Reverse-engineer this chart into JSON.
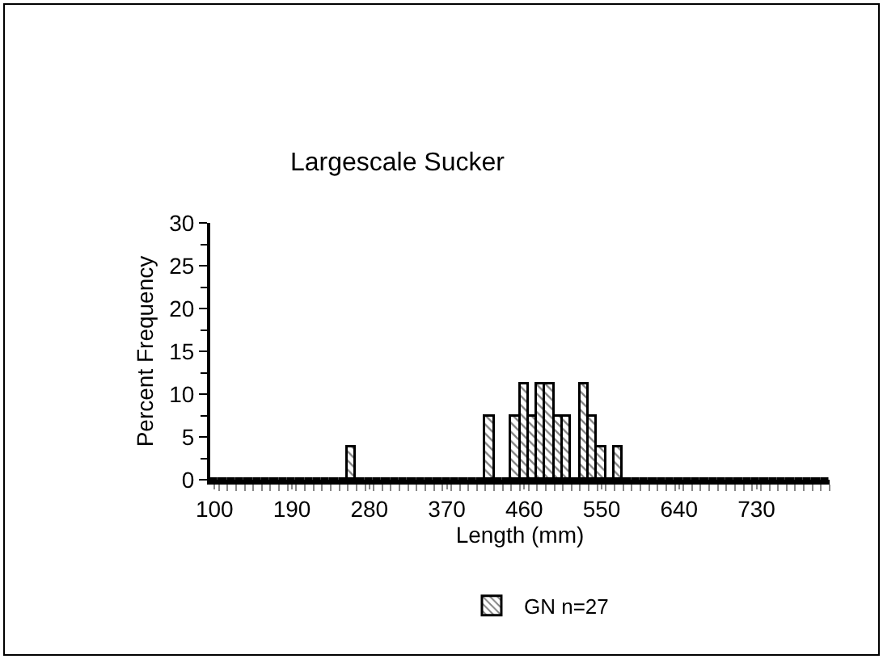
{
  "chart_data": {
    "type": "bar",
    "title": "Largescale Sucker",
    "xlabel": "Length (mm)",
    "ylabel": "Percent Frequency",
    "categories": [
      "100",
      null,
      null,
      null,
      null,
      null,
      null,
      null,
      null,
      "190",
      null,
      null,
      null,
      null,
      null,
      null,
      null,
      null,
      "280",
      null,
      null,
      null,
      null,
      null,
      null,
      null,
      null,
      "370",
      null,
      null,
      null,
      null,
      null,
      null,
      null,
      null,
      "460",
      null,
      null,
      null,
      null,
      null,
      null,
      null,
      null,
      "550",
      null,
      null,
      null,
      null,
      null,
      null,
      null,
      null,
      "640",
      null,
      null,
      null,
      null,
      null,
      null,
      null,
      null,
      "730",
      null,
      null,
      null,
      null,
      null,
      null,
      null,
      null
    ],
    "series": [
      {
        "name": "GN n=27",
        "color": "#000000",
        "values": [
          0,
          0,
          0,
          0,
          0,
          0,
          0,
          0,
          0,
          0,
          0,
          0,
          0,
          0,
          0,
          0,
          3.7,
          0,
          0,
          0,
          0,
          0,
          0,
          0,
          0,
          0,
          0,
          0,
          0,
          0,
          0,
          0,
          7.4,
          0,
          0,
          7.4,
          11.1,
          7.4,
          11.1,
          11.1,
          7.4,
          7.4,
          0,
          11.1,
          7.4,
          3.7,
          0,
          3.7,
          0,
          0,
          0,
          0,
          0,
          0,
          0,
          0,
          0,
          0,
          0,
          0,
          0,
          0,
          0,
          0,
          0,
          0,
          0,
          0,
          0,
          0,
          0,
          0
        ]
      }
    ],
    "ylim": [
      0,
      30
    ],
    "yticks": [
      0,
      5,
      10,
      15,
      20,
      25,
      30
    ],
    "grid": false,
    "legend": "bottom"
  }
}
